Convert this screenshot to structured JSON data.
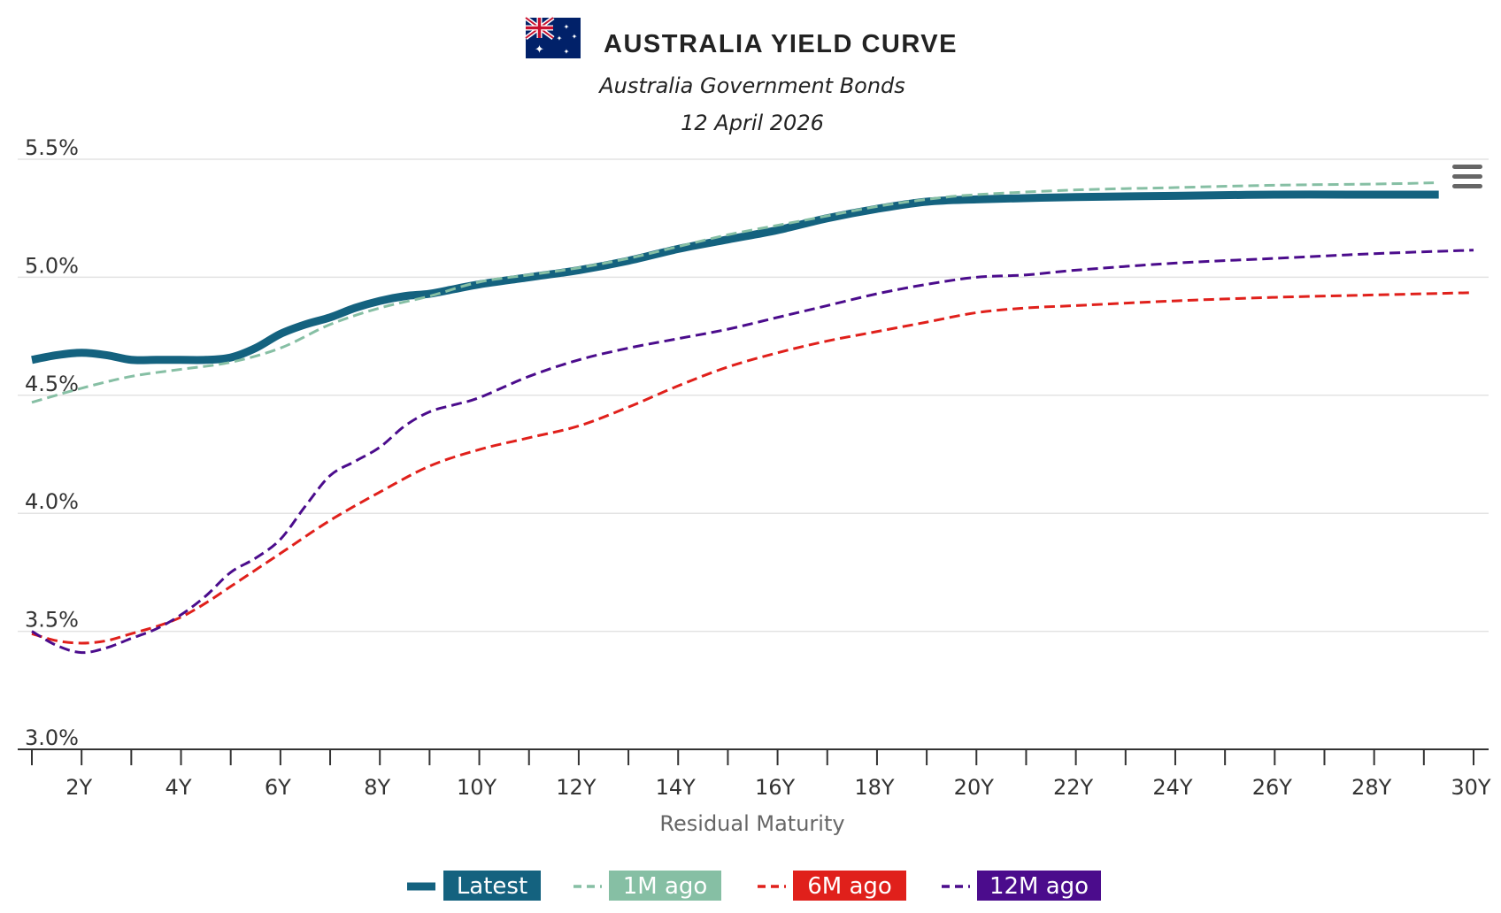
{
  "header": {
    "title": "AUSTRALIA YIELD CURVE",
    "subtitle": "Australia Government Bonds",
    "date": "12 April 2026",
    "flag_icon": "australia-flag-icon"
  },
  "menu": {
    "icon": "hamburger-menu-icon"
  },
  "colors": {
    "latest": "#14627f",
    "m1": "#86bfa4",
    "m6": "#e0201b",
    "m12": "#4b0c8c",
    "grid": "#e3e3e3",
    "axis": "#333333",
    "tick_text": "#333333",
    "xlabel": "#666666"
  },
  "chart_data": {
    "type": "line",
    "title": "AUSTRALIA YIELD CURVE",
    "subtitle": "Australia Government Bonds",
    "xlabel": "Residual Maturity",
    "ylabel": "",
    "xlim": [
      1,
      30
    ],
    "ylim": [
      3.0,
      5.5
    ],
    "x_ticks": [
      2,
      4,
      6,
      8,
      10,
      12,
      14,
      16,
      18,
      20,
      22,
      24,
      26,
      28,
      30
    ],
    "x_tick_labels": [
      "2Y",
      "4Y",
      "6Y",
      "8Y",
      "10Y",
      "12Y",
      "14Y",
      "16Y",
      "18Y",
      "20Y",
      "22Y",
      "24Y",
      "26Y",
      "28Y",
      "30Y"
    ],
    "y_ticks": [
      3.0,
      3.5,
      4.0,
      4.5,
      5.0,
      5.5
    ],
    "y_tick_labels": [
      "3.0%",
      "3.5%",
      "4.0%",
      "4.5%",
      "5.0%",
      "5.5%"
    ],
    "grid": true,
    "legend": "bottom-center",
    "series": [
      {
        "name": "Latest",
        "style": "solid",
        "x": [
          1,
          1.5,
          2,
          2.5,
          3,
          3.5,
          4,
          4.5,
          5,
          5.5,
          6,
          6.5,
          7,
          7.5,
          8,
          8.5,
          9,
          9.5,
          10,
          11,
          12,
          13,
          14,
          15,
          16,
          17,
          18,
          19,
          20,
          22,
          24,
          26,
          28,
          29.3
        ],
        "y": [
          4.65,
          4.67,
          4.68,
          4.67,
          4.65,
          4.65,
          4.65,
          4.65,
          4.66,
          4.7,
          4.76,
          4.8,
          4.83,
          4.87,
          4.9,
          4.92,
          4.93,
          4.95,
          4.97,
          5.0,
          5.03,
          5.07,
          5.12,
          5.16,
          5.2,
          5.25,
          5.29,
          5.32,
          5.33,
          5.34,
          5.345,
          5.35,
          5.35,
          5.35
        ]
      },
      {
        "name": "1M ago",
        "style": "dashed",
        "x": [
          1,
          2,
          3,
          4,
          5,
          6,
          7,
          8,
          9,
          10,
          11,
          12,
          13,
          14,
          15,
          16,
          17,
          18,
          19,
          20,
          22,
          24,
          26,
          28,
          29.2
        ],
        "y": [
          4.47,
          4.53,
          4.58,
          4.61,
          4.64,
          4.7,
          4.8,
          4.87,
          4.92,
          4.98,
          5.01,
          5.04,
          5.08,
          5.13,
          5.18,
          5.22,
          5.26,
          5.3,
          5.33,
          5.35,
          5.37,
          5.38,
          5.39,
          5.395,
          5.4
        ]
      },
      {
        "name": "6M ago",
        "style": "dashed",
        "x": [
          1,
          1.5,
          2,
          2.5,
          3,
          3.5,
          4,
          4.5,
          5,
          5.5,
          6,
          7,
          8,
          9,
          10,
          11,
          12,
          13,
          14,
          15,
          16,
          17,
          18,
          19,
          20,
          21,
          22,
          24,
          26,
          28,
          30
        ],
        "y": [
          3.49,
          3.46,
          3.45,
          3.46,
          3.49,
          3.52,
          3.56,
          3.62,
          3.69,
          3.76,
          3.83,
          3.97,
          4.09,
          4.2,
          4.27,
          4.32,
          4.37,
          4.45,
          4.54,
          4.62,
          4.68,
          4.73,
          4.77,
          4.81,
          4.85,
          4.87,
          4.88,
          4.9,
          4.915,
          4.925,
          4.935
        ]
      },
      {
        "name": "12M ago",
        "style": "dashed",
        "x": [
          1,
          1.5,
          2,
          2.5,
          3,
          3.5,
          4,
          4.5,
          5,
          5.5,
          6,
          6.5,
          7,
          7.5,
          8,
          8.5,
          9,
          9.5,
          10,
          11,
          12,
          13,
          14,
          15,
          16,
          17,
          18,
          19,
          20,
          21,
          22,
          24,
          26,
          28,
          30
        ],
        "y": [
          3.5,
          3.44,
          3.41,
          3.43,
          3.47,
          3.51,
          3.57,
          3.65,
          3.75,
          3.81,
          3.89,
          4.03,
          4.16,
          4.22,
          4.28,
          4.37,
          4.43,
          4.46,
          4.49,
          4.58,
          4.65,
          4.7,
          4.74,
          4.78,
          4.83,
          4.88,
          4.93,
          4.97,
          5.0,
          5.01,
          5.03,
          5.06,
          5.08,
          5.1,
          5.115
        ]
      }
    ]
  }
}
